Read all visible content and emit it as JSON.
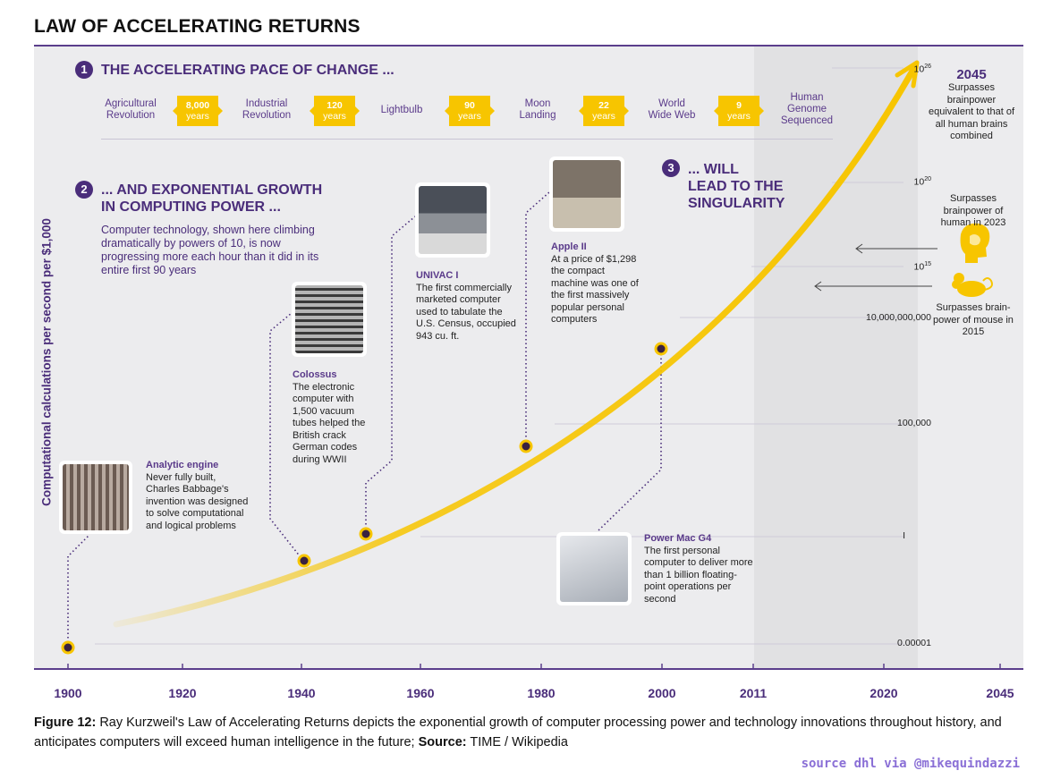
{
  "page_title": "LAW OF ACCELERATING RETURNS",
  "section1": {
    "number": "1",
    "title": "THE ACCELERATING PACE OF CHANGE ..."
  },
  "milestones": [
    {
      "label_line1": "Agricultural",
      "label_line2": "Revolution"
    },
    {
      "label_line1": "Industrial",
      "label_line2": "Revolution"
    },
    {
      "label_line1": "Lightbulb",
      "label_line2": ""
    },
    {
      "label_line1": "Moon",
      "label_line2": "Landing"
    },
    {
      "label_line1": "World",
      "label_line2": "Wide Web"
    },
    {
      "label_line1": "Human",
      "label_line2": "Genome",
      "label_line3": "Sequenced"
    }
  ],
  "gaps": [
    {
      "value": "8,000",
      "unit": "years"
    },
    {
      "value": "120",
      "unit": "years"
    },
    {
      "value": "90",
      "unit": "years"
    },
    {
      "value": "22",
      "unit": "years"
    },
    {
      "value": "9",
      "unit": "years"
    }
  ],
  "section2": {
    "number": "2",
    "title_line1": "... AND EXPONENTIAL GROWTH",
    "title_line2": "IN COMPUTING POWER ...",
    "body": "Computer technology, shown here climbing dramatically by powers of 10, is now progressing more each hour than it did in its entire first 90 years"
  },
  "section3": {
    "number": "3",
    "title_line1": "... WILL",
    "title_line2": "LEAD TO THE",
    "title_line3": "SINGULARITY"
  },
  "annotations": [
    {
      "title": "Analytic engine",
      "text": "Never fully built, Charles Babbage's invention was designed to solve computational and logical problems"
    },
    {
      "title": "Colossus",
      "text": "The electronic computer with 1,500 vacuum tubes helped the British crack German codes during WWII"
    },
    {
      "title": "UNIVAC I",
      "text": "The first commercially marketed computer used to tabulate the U.S. Census, occupied 943 cu. ft."
    },
    {
      "title": "Apple II",
      "text": "At a price of $1,298 the compact machine was one of the first massively popular personal computers"
    },
    {
      "title": "Power Mac G4",
      "text": "The first personal computer to deliver more than 1 billion floating-point operations per second"
    }
  ],
  "right_notes": {
    "year2045": "2045",
    "note2045": "Surpasses brainpower equivalent to that of all human brains combined",
    "human": "Surpasses brainpower of human in 2023",
    "mouse": "Surpasses brain-power of mouse in 2015"
  },
  "icons": {
    "human": "brain-head-icon",
    "mouse": "mouse-icon",
    "arrow": "arrow-left-icon"
  },
  "colors": {
    "accent": "#4a2d7a",
    "curve": "#f7c500",
    "panel": "#ececee"
  },
  "chart_data": {
    "type": "line",
    "title": "LAW OF ACCELERATING RETURNS",
    "ylabel": "Computational calculations per second per $1,000",
    "xlabel": "",
    "x_ticks": [
      "1900",
      "1920",
      "1940",
      "1960",
      "1980",
      "2000",
      "2011",
      "2020",
      "2045"
    ],
    "y_ticks": [
      "0.00001",
      "I",
      "100,000",
      "10,000,000,000",
      "10",
      "10",
      "10"
    ],
    "y_tick_exponents": [
      "",
      "",
      "",
      "",
      "15",
      "20",
      "26"
    ],
    "y_scale": "log10",
    "ylim_exponent": [
      -5,
      26
    ],
    "xlim": [
      1900,
      2045
    ],
    "points": [
      {
        "name": "Analytic engine",
        "x": 1900,
        "log10_y": -5
      },
      {
        "name": "Colossus",
        "x": 1940,
        "log10_y": -0.8
      },
      {
        "name": "UNIVAC I",
        "x": 1951,
        "log10_y": 0.1
      },
      {
        "name": "Apple II",
        "x": 1977,
        "log10_y": 4.2
      },
      {
        "name": "Power Mac G4",
        "x": 1999,
        "log10_y": 9.1
      }
    ],
    "curve_start_x": 1908,
    "curve_end_x": 2023,
    "curve_end_log10_y": 26,
    "shaded_region_x": [
      2011,
      2023
    ]
  }
}
